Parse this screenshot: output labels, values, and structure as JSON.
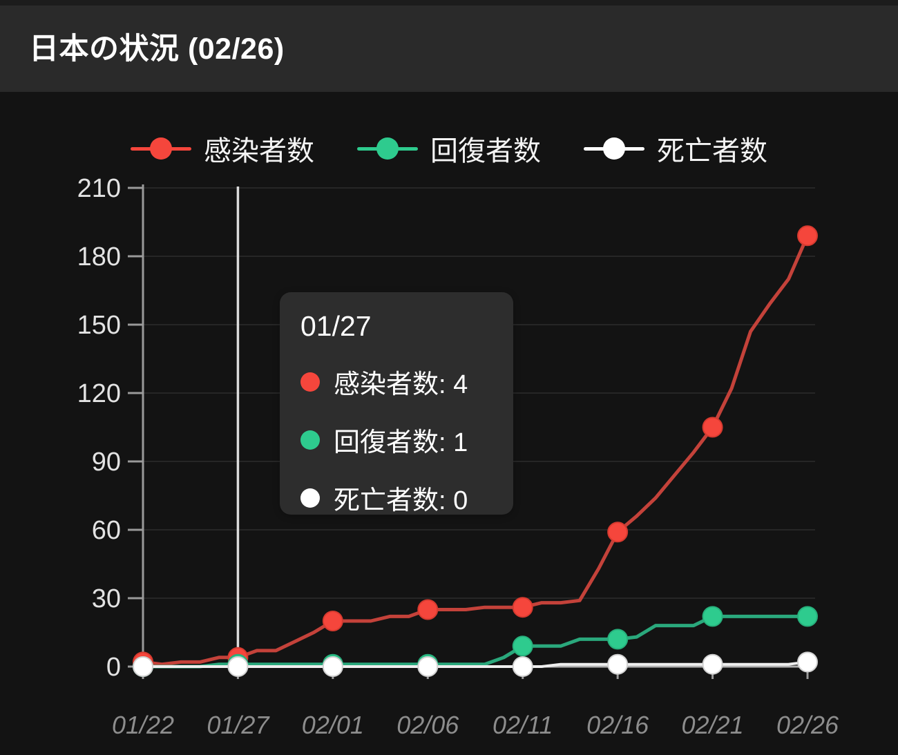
{
  "header": {
    "title": "日本の状況 (02/26)"
  },
  "legend": {
    "items": [
      {
        "key": "confirmed",
        "label": "感染者数",
        "color": "#f5463c"
      },
      {
        "key": "recovered",
        "label": "回復者数",
        "color": "#2ecb8e"
      },
      {
        "key": "deaths",
        "label": "死亡者数",
        "color": "#ffffff"
      }
    ]
  },
  "tooltip": {
    "date": "01/27",
    "sep": ": ",
    "rows": [
      {
        "key": "confirmed",
        "label": "感染者数",
        "value": "4",
        "color": "#f5463c"
      },
      {
        "key": "recovered",
        "label": "回復者数",
        "value": "1",
        "color": "#2ecb8e"
      },
      {
        "key": "deaths",
        "label": "死亡者数",
        "value": "0",
        "color": "#ffffff"
      }
    ]
  },
  "chart_data": {
    "type": "line",
    "title": "日本の状況 (02/26)",
    "xlabel": "",
    "ylabel": "",
    "ylim": [
      0,
      210
    ],
    "y_ticks": [
      0,
      30,
      60,
      90,
      120,
      150,
      180,
      210
    ],
    "grid": "horizontal",
    "legend_position": "top",
    "x": [
      "01/22",
      "01/23",
      "01/24",
      "01/25",
      "01/26",
      "01/27",
      "01/28",
      "01/29",
      "01/30",
      "01/31",
      "02/01",
      "02/02",
      "02/03",
      "02/04",
      "02/05",
      "02/06",
      "02/07",
      "02/08",
      "02/09",
      "02/10",
      "02/11",
      "02/12",
      "02/13",
      "02/14",
      "02/15",
      "02/16",
      "02/17",
      "02/18",
      "02/19",
      "02/20",
      "02/21",
      "02/22",
      "02/23",
      "02/24",
      "02/25",
      "02/26"
    ],
    "x_tick_labels": [
      "01/22",
      "01/27",
      "02/01",
      "02/06",
      "02/11",
      "02/16",
      "02/21",
      "02/26"
    ],
    "series": [
      {
        "key": "confirmed",
        "name": "感染者数",
        "line_color": "#c4423a",
        "dot_color": "#f5463c",
        "dot_edge": "#d63a2f",
        "stroke_width": 5,
        "values": [
          2,
          1,
          2,
          2,
          4,
          4,
          7,
          7,
          11,
          15,
          20,
          20,
          20,
          22,
          22,
          25,
          25,
          25,
          26,
          26,
          26,
          28,
          28,
          29,
          43,
          59,
          66,
          74,
          84,
          94,
          105,
          122,
          147,
          159,
          170,
          189
        ]
      },
      {
        "key": "recovered",
        "name": "回復者数",
        "line_color": "#2aa87c",
        "dot_color": "#2ecb8e",
        "dot_edge": "#27b07c",
        "stroke_width": 5,
        "values": [
          0,
          0,
          0,
          0,
          1,
          1,
          1,
          1,
          1,
          1,
          1,
          1,
          1,
          1,
          1,
          1,
          1,
          1,
          1,
          4,
          9,
          9,
          9,
          12,
          12,
          12,
          13,
          18,
          18,
          18,
          22,
          22,
          22,
          22,
          22,
          22
        ]
      },
      {
        "key": "deaths",
        "name": "死亡者数",
        "line_color": "#efefef",
        "dot_color": "#ffffff",
        "dot_edge": "#d2d2d2",
        "stroke_width": 4,
        "values": [
          0,
          0,
          0,
          0,
          0,
          0,
          0,
          0,
          0,
          0,
          0,
          0,
          0,
          0,
          0,
          0,
          0,
          0,
          0,
          0,
          0,
          0,
          1,
          1,
          1,
          1,
          1,
          1,
          1,
          1,
          1,
          1,
          1,
          1,
          1,
          2
        ]
      }
    ],
    "highlight": {
      "date": "01/27",
      "index": 5
    }
  },
  "colors": {
    "background": "#131313",
    "header_background": "#2a2a2a",
    "top_strip": "#1c1c1c",
    "grid": "#262626",
    "y_axis": "#9a9a9a",
    "x_axis": "#b3b3b3",
    "tick": "#9a9a9a",
    "y_label": "#e3e3e3",
    "x_label": "#8d8d8d",
    "cursor": "#dcdcdc",
    "tooltip_background": "#2d2d2d",
    "text": "#ffffff"
  }
}
